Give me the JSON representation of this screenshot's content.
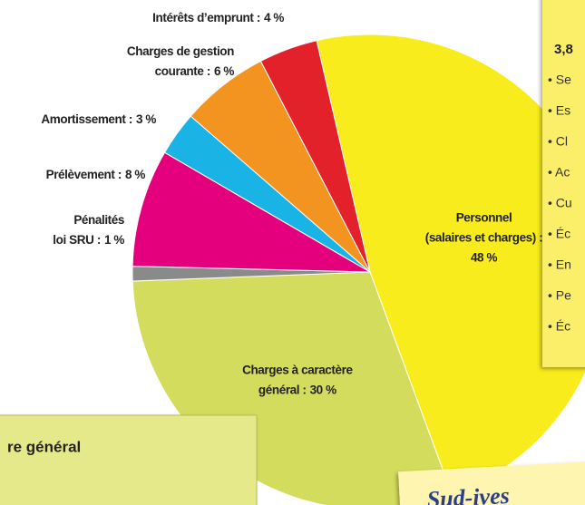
{
  "chart_data": {
    "type": "pie",
    "categories": [
      [
        "Personnel",
        "(salaires et charges) :"
      ],
      [
        "Charges à caractère",
        "général :"
      ],
      [
        "Pénalités",
        "loi SRU :"
      ],
      [
        "Prélèvement :"
      ],
      [
        "Amortissement :"
      ],
      [
        "Charges de gestion",
        "courante :"
      ],
      [
        "Intérêts d’emprunt :"
      ]
    ],
    "values": [
      48,
      30,
      1,
      8,
      3,
      6,
      4
    ],
    "value_labels": [
      "48 %",
      "30 %",
      "1 %",
      "8 %",
      "3 %",
      "6 %",
      "4 %"
    ],
    "colors": [
      "#f8ec1c",
      "#d4dc5e",
      "#8a8a8a",
      "#e4007c",
      "#1ab3e6",
      "#f39320",
      "#e2212b"
    ]
  },
  "side_panel": {
    "heading": "3,8",
    "items": [
      "• Se",
      "• Es",
      "• Cl",
      "• Ac",
      "• Cu",
      "• Éc",
      "• En",
      "• Pe",
      "• Éc"
    ]
  },
  "bottom_panel": {
    "title": "re général"
  },
  "note": {
    "text": "Sud-ives"
  }
}
